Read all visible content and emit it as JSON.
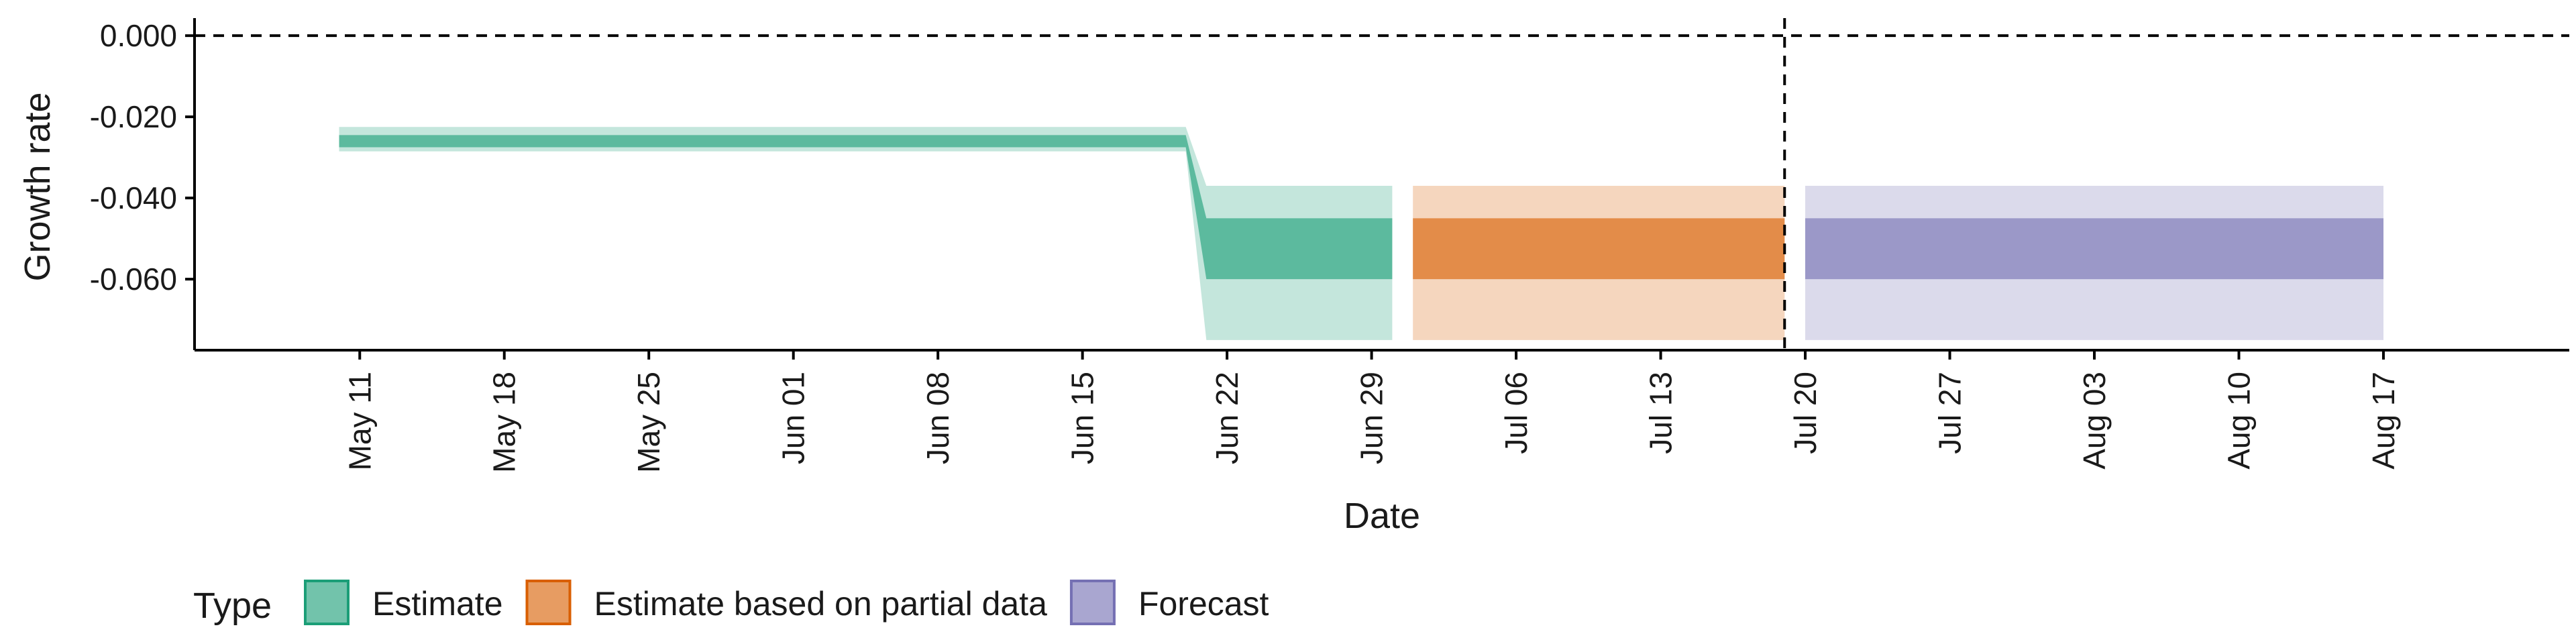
{
  "chart_data": {
    "type": "area",
    "xlabel": "Date",
    "ylabel": "Growth rate",
    "y_ticks": [
      0.0,
      -0.02,
      -0.04,
      -0.06
    ],
    "y_tick_labels": [
      "0.000",
      "-0.020",
      "-0.040",
      "-0.060"
    ],
    "ylim": [
      -0.0775,
      0.003
    ],
    "x_axis_type": "date",
    "xlim": [
      "2020-05-03",
      "2020-08-26"
    ],
    "x_ticks": [
      "2020-05-11",
      "2020-05-18",
      "2020-05-25",
      "2020-06-01",
      "2020-06-08",
      "2020-06-15",
      "2020-06-22",
      "2020-06-29",
      "2020-07-06",
      "2020-07-13",
      "2020-07-20",
      "2020-07-27",
      "2020-08-03",
      "2020-08-10",
      "2020-08-17"
    ],
    "x_tick_labels": [
      "May 11",
      "May 18",
      "May 25",
      "Jun 01",
      "Jun 08",
      "Jun 15",
      "Jun 22",
      "Jun 29",
      "Jul 06",
      "Jul 13",
      "Jul 20",
      "Jul 27",
      "Aug 03",
      "Aug 10",
      "Aug 17"
    ],
    "hline": {
      "y": 0.0,
      "style": "dashed"
    },
    "vline": {
      "x": "2020-07-19",
      "style": "dashed"
    },
    "grid": false,
    "legend": {
      "title": "Type",
      "position": "bottom-left",
      "entries": [
        "Estimate",
        "Estimate based on partial data",
        "Forecast"
      ]
    },
    "series": [
      {
        "name": "Estimate",
        "color": "#1b9e77",
        "points": [
          {
            "date": "2020-05-10",
            "outer_lower": -0.0285,
            "inner_lower": -0.0275,
            "inner_upper": -0.0245,
            "outer_upper": -0.0225
          },
          {
            "date": "2020-06-20",
            "outer_lower": -0.0285,
            "inner_lower": -0.0275,
            "inner_upper": -0.0245,
            "outer_upper": -0.0225
          },
          {
            "date": "2020-06-21",
            "outer_lower": -0.075,
            "inner_lower": -0.06,
            "inner_upper": -0.045,
            "outer_upper": -0.037
          },
          {
            "date": "2020-06-30",
            "outer_lower": -0.075,
            "inner_lower": -0.06,
            "inner_upper": -0.045,
            "outer_upper": -0.037
          }
        ]
      },
      {
        "name": "Estimate based on partial data",
        "color": "#d95f02",
        "points": [
          {
            "date": "2020-07-01",
            "outer_lower": -0.075,
            "inner_lower": -0.06,
            "inner_upper": -0.045,
            "outer_upper": -0.037
          },
          {
            "date": "2020-07-19",
            "outer_lower": -0.075,
            "inner_lower": -0.06,
            "inner_upper": -0.045,
            "outer_upper": -0.037
          }
        ]
      },
      {
        "name": "Forecast",
        "color": "#7570b3",
        "points": [
          {
            "date": "2020-07-20",
            "outer_lower": -0.075,
            "inner_lower": -0.06,
            "inner_upper": -0.045,
            "outer_upper": -0.037
          },
          {
            "date": "2020-08-17",
            "outer_lower": -0.075,
            "inner_lower": -0.06,
            "inner_upper": -0.045,
            "outer_upper": -0.037
          }
        ]
      }
    ]
  }
}
